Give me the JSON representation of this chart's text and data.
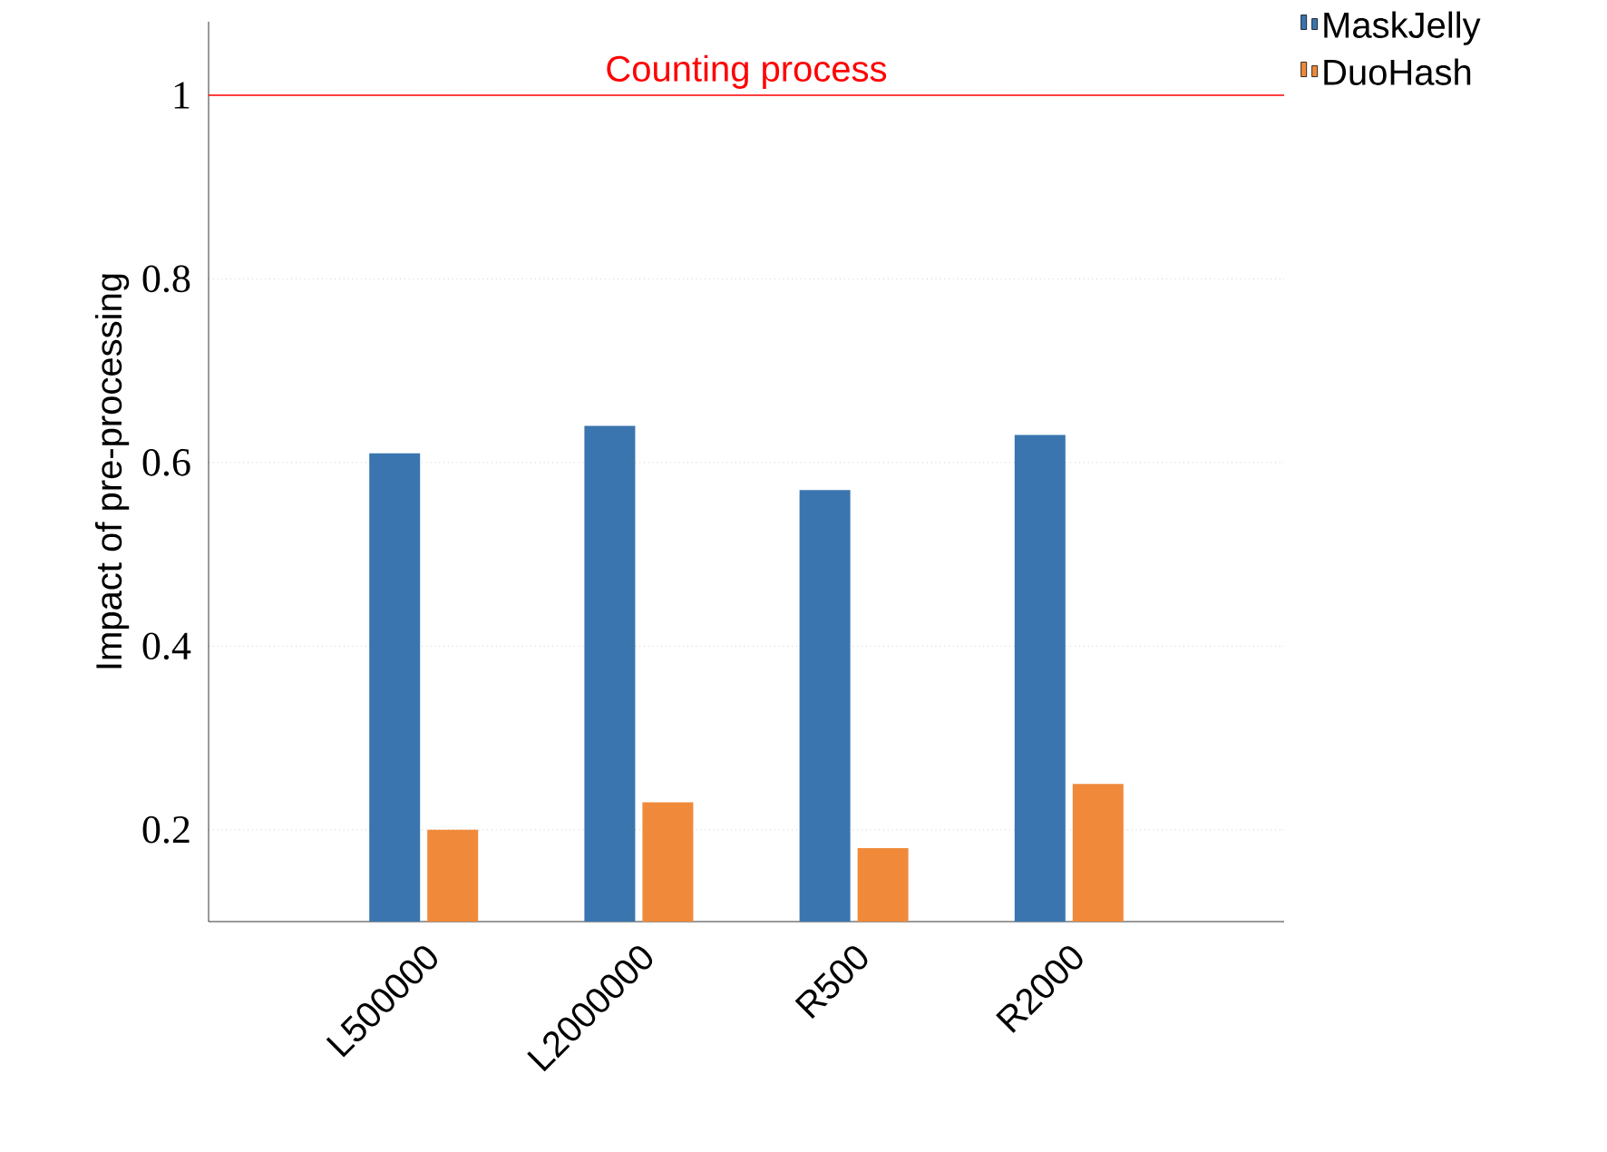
{
  "chart_data": {
    "type": "bar",
    "ylabel": "Impact of pre-processing",
    "categories": [
      "L500000",
      "L2000000",
      "R500",
      "R2000"
    ],
    "series": [
      {
        "name": "MaskJelly",
        "color": "#3a75b0",
        "values": [
          0.61,
          0.64,
          0.57,
          0.63
        ]
      },
      {
        "name": "DuoHash",
        "color": "#f08a3a",
        "values": [
          0.2,
          0.23,
          0.18,
          0.25
        ]
      }
    ],
    "ylim": [
      0.1,
      1.08
    ],
    "yticks": [
      0.2,
      0.4,
      0.6,
      0.8,
      1
    ],
    "grid": "y",
    "legend": "top right",
    "ref_lines": [
      {
        "axis": "y",
        "value": 1,
        "label": "Counting process",
        "color": "#ff0000"
      }
    ]
  }
}
